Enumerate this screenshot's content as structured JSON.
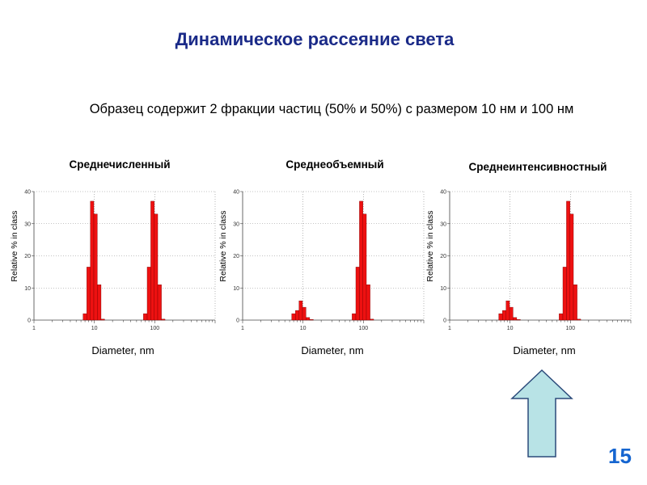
{
  "slide": {
    "title": "Динамическое рассеяние света",
    "subtitle": "Образец содержит 2 фракции частиц (50% и 50%) с размером 10 нм и 100 нм",
    "page_number": "15"
  },
  "colors": {
    "bar": "#ee1111",
    "title": "#1a2a88",
    "page_number": "#1565d0",
    "arrow_fill": "#b8e3e6"
  },
  "chart_data": [
    {
      "type": "bar",
      "title": "Среднечисленный",
      "xlabel": "Diameter, nm",
      "ylabel": "Relative % in class",
      "xscale": "log",
      "xlim": [
        1,
        1000
      ],
      "ylim": [
        0,
        40
      ],
      "x_ticks": [
        1,
        10,
        100
      ],
      "y_ticks": [
        0,
        10,
        20,
        30,
        40
      ],
      "grid": true,
      "bins": [
        {
          "x": [
            6.5,
            7.5
          ],
          "y": 2
        },
        {
          "x": [
            7.5,
            8.6
          ],
          "y": 16.5
        },
        {
          "x": [
            8.6,
            9.8
          ],
          "y": 37
        },
        {
          "x": [
            9.8,
            11.2
          ],
          "y": 33
        },
        {
          "x": [
            11.2,
            12.9
          ],
          "y": 11
        },
        {
          "x": [
            12.9,
            14.8
          ],
          "y": 0.3
        },
        {
          "x": [
            65,
            75
          ],
          "y": 2
        },
        {
          "x": [
            75,
            86
          ],
          "y": 16.5
        },
        {
          "x": [
            86,
            98
          ],
          "y": 37
        },
        {
          "x": [
            98,
            112
          ],
          "y": 33
        },
        {
          "x": [
            112,
            129
          ],
          "y": 11
        },
        {
          "x": [
            129,
            148
          ],
          "y": 0.3
        }
      ]
    },
    {
      "type": "bar",
      "title": "Среднеобъемный",
      "xlabel": "Diameter, nm",
      "ylabel": "Relative % in class",
      "xscale": "log",
      "xlim": [
        1,
        1000
      ],
      "ylim": [
        0,
        40
      ],
      "x_ticks": [
        1,
        10,
        100
      ],
      "y_ticks": [
        0,
        10,
        20,
        30,
        40
      ],
      "grid": true,
      "bins": [
        {
          "x": [
            6.5,
            7.5
          ],
          "y": 2
        },
        {
          "x": [
            7.5,
            8.6
          ],
          "y": 3
        },
        {
          "x": [
            8.6,
            9.8
          ],
          "y": 6
        },
        {
          "x": [
            9.8,
            11.2
          ],
          "y": 4
        },
        {
          "x": [
            11.2,
            12.9
          ],
          "y": 0.8
        },
        {
          "x": [
            12.9,
            14.8
          ],
          "y": 0.2
        },
        {
          "x": [
            65,
            75
          ],
          "y": 2
        },
        {
          "x": [
            75,
            86
          ],
          "y": 16.5
        },
        {
          "x": [
            86,
            98
          ],
          "y": 37
        },
        {
          "x": [
            98,
            112
          ],
          "y": 33
        },
        {
          "x": [
            112,
            129
          ],
          "y": 11
        },
        {
          "x": [
            129,
            148
          ],
          "y": 0.3
        }
      ]
    },
    {
      "type": "bar",
      "title": "Среднеинтенсивностный",
      "xlabel": "Diameter, nm",
      "ylabel": "Relative % in class",
      "xscale": "log",
      "xlim": [
        1,
        1000
      ],
      "ylim": [
        0,
        40
      ],
      "x_ticks": [
        1,
        10,
        100
      ],
      "y_ticks": [
        0,
        10,
        20,
        30,
        40
      ],
      "grid": true,
      "bins": [
        {
          "x": [
            6.5,
            7.5
          ],
          "y": 2
        },
        {
          "x": [
            7.5,
            8.6
          ],
          "y": 3
        },
        {
          "x": [
            8.6,
            9.8
          ],
          "y": 6
        },
        {
          "x": [
            9.8,
            11.2
          ],
          "y": 4
        },
        {
          "x": [
            11.2,
            12.9
          ],
          "y": 0.8
        },
        {
          "x": [
            12.9,
            14.8
          ],
          "y": 0.2
        },
        {
          "x": [
            65,
            75
          ],
          "y": 2
        },
        {
          "x": [
            75,
            86
          ],
          "y": 16.5
        },
        {
          "x": [
            86,
            98
          ],
          "y": 37
        },
        {
          "x": [
            98,
            112
          ],
          "y": 33
        },
        {
          "x": [
            112,
            129
          ],
          "y": 11
        },
        {
          "x": [
            129,
            148
          ],
          "y": 0.3
        }
      ]
    }
  ],
  "arrow": {
    "icon": "up-arrow-icon"
  }
}
